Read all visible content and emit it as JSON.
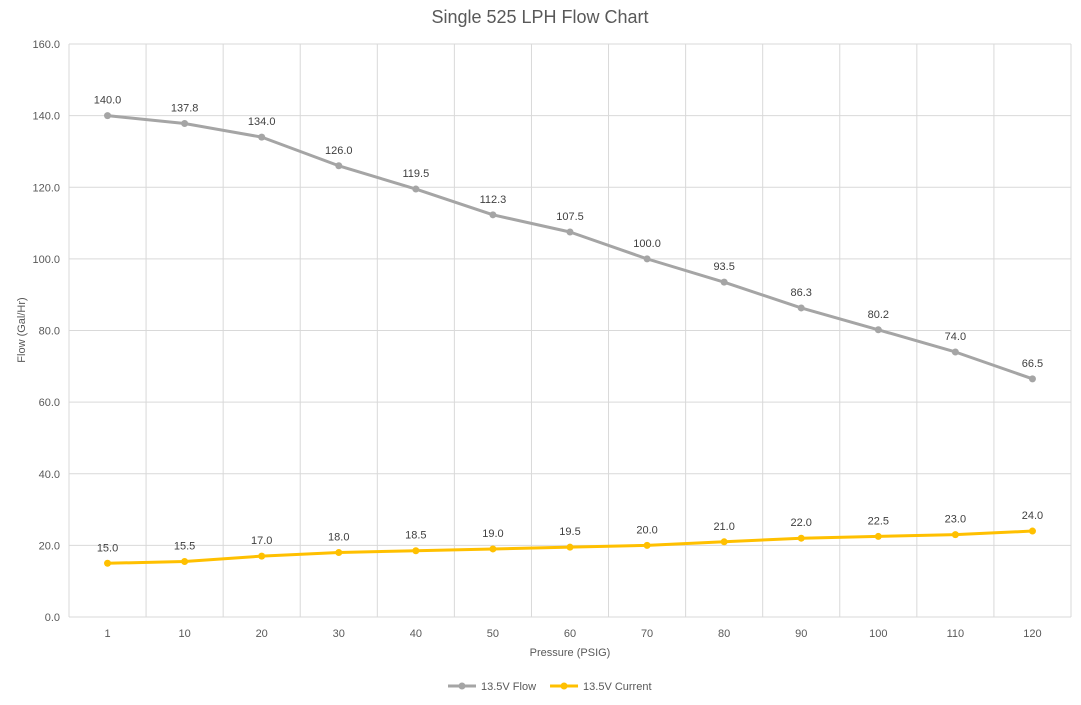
{
  "chart_data": {
    "type": "line",
    "title": "Single 525 LPH Flow Chart",
    "xlabel": "Pressure (PSIG)",
    "ylabel": "Flow (Gal/Hr)",
    "categories": [
      "1",
      "10",
      "20",
      "30",
      "40",
      "50",
      "60",
      "70",
      "80",
      "90",
      "100",
      "110",
      "120"
    ],
    "ylim": [
      0,
      160
    ],
    "yticks": [
      "0.0",
      "20.0",
      "40.0",
      "60.0",
      "80.0",
      "100.0",
      "120.0",
      "140.0",
      "160.0"
    ],
    "grid": true,
    "legend_position": "bottom",
    "series": [
      {
        "name": "13.5V Flow",
        "color": "#a5a5a5",
        "values": [
          140.0,
          137.8,
          134.0,
          126.0,
          119.5,
          112.3,
          107.5,
          100.0,
          93.5,
          86.3,
          80.2,
          74.0,
          66.5
        ],
        "labels": [
          "140.0",
          "137.8",
          "134.0",
          "126.0",
          "119.5",
          "112.3",
          "107.5",
          "100.0",
          "93.5",
          "86.3",
          "80.2",
          "74.0",
          "66.5"
        ]
      },
      {
        "name": "13.5V Current",
        "color": "#ffc000",
        "values": [
          15.0,
          15.5,
          17.0,
          18.0,
          18.5,
          19.0,
          19.5,
          20.0,
          21.0,
          22.0,
          22.5,
          23.0,
          24.0
        ],
        "labels": [
          "15.0",
          "15.5",
          "17.0",
          "18.0",
          "18.5",
          "19.0",
          "19.5",
          "20.0",
          "21.0",
          "22.0",
          "22.5",
          "23.0",
          "24.0"
        ]
      }
    ]
  }
}
